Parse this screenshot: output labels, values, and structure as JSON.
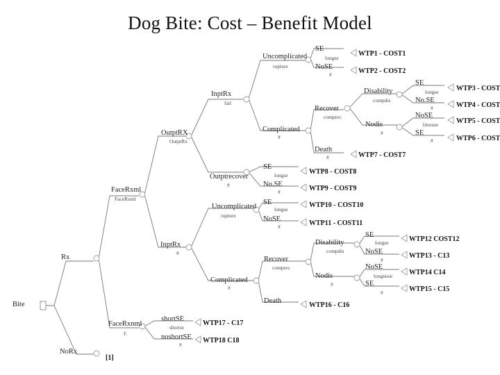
{
  "title": "Dog Bite: Cost – Benefit Model",
  "labels": {
    "bite": "Bite",
    "rx": "Rx",
    "norx": "NoRx",
    "face_rxm": "FaceRxml",
    "face_rxm_sub": "FaceRxml",
    "face_rxnm": "FaceRxnml",
    "face_rxnm_sub": "f\\",
    "outpt_rx": "OutptRX",
    "outpt_rx_sub": "OutptRx",
    "inpt_rx_top": "InptRx",
    "inpt_rx_top_sub": "fail",
    "inpt_rx_low": "InptRx",
    "inpt_rx_low_sub": "#",
    "uncomp1": "Uncomplicated",
    "uncomp1_sub": "rupture",
    "comp1": "Complicated",
    "comp1_sub": "#",
    "se1": "SE",
    "se1_sub": "longse",
    "nose1": "NoSE",
    "nose1_sub": "#",
    "recover1": "Recover",
    "recover1_sub": "comprec",
    "death1": "Death",
    "death1_sub": "#",
    "disab1": "Disability",
    "disab1_sub": "compdis",
    "nodis1": "Nodis",
    "nodis1_sub": "#",
    "se3": "SE",
    "se3_sub": "longse",
    "nose3": "No.SE",
    "nose3_sub": "#",
    "nose5": "NoSE",
    "nose5_sub": "1mouse",
    "se5": "SE",
    "se5_sub": "#",
    "outptrecover": "Outptrecover",
    "outptrecover_sub": "#",
    "se8": "SE",
    "se8_sub": "longse",
    "nose8": "No.SE",
    "nose8_sub": "#",
    "uncomp2": "Uncomplicated",
    "uncomp2_sub": "rupture",
    "se10": "SE",
    "se10_sub": "longse",
    "nose10": "NoSE",
    "nose10_sub": "#",
    "comp2": "Complicated",
    "comp2_sub": "#",
    "recover2": "Recover",
    "recover2_sub": "comprec",
    "death2": "Death",
    "disab2": "Disability",
    "disab2_sub": "compdis",
    "nodis2": "Nodis",
    "nodis2_sub": "#",
    "se12": "SE",
    "se12_sub": "longse",
    "nose12": "NoSE",
    "nose12_sub": "#",
    "nose14": "NoSE",
    "nose14_sub": "longnose",
    "se14": "SE",
    "se14_sub": "#",
    "shortse": "shortSE",
    "shortse_sub": "shortse",
    "noshortse": "noshortSE",
    "noshortse_sub": "#"
  },
  "terminals": {
    "t1": "WTP1 - COST1",
    "t2": "WTP2 - COST2",
    "t3": "WTP3 - COST",
    "t4": "WTP4 - COST",
    "t5": "WTP5 - COST",
    "t6": "WTP6 - COST",
    "t7": "WTP7 - COST7",
    "t8": "WTP8 - COST8",
    "t9": "WTP9 - COST9",
    "t10": "WTP10 - COST10",
    "t11": "WTP11 - COST11",
    "t12": "WTP12   COST12",
    "t13": "WTP13 - C13",
    "t14": "WTP14   C14",
    "t15": "WTP15 - C15",
    "t16": "WTP16 - C16",
    "t17": "WTP17 - C17",
    "t18": "WTP18   C18",
    "t19": "[1]"
  }
}
